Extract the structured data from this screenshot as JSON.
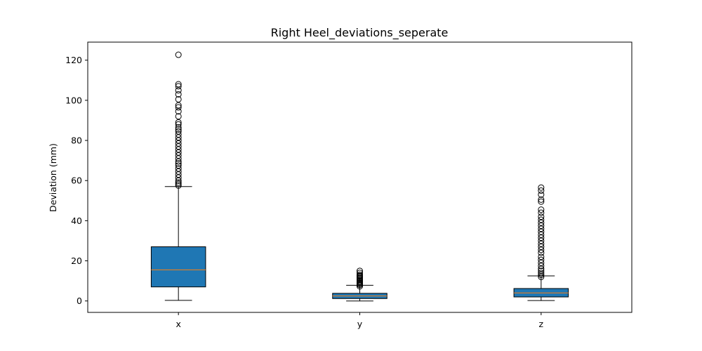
{
  "chart_data": {
    "type": "box",
    "title": "Right Heel_deviations_seperate",
    "xlabel": "",
    "ylabel": "Deviation (mm)",
    "ylim": [
      -5.7,
      129
    ],
    "yticks": [
      0,
      20,
      40,
      60,
      80,
      100,
      120
    ],
    "grid": false,
    "categories": [
      "x",
      "y",
      "z"
    ],
    "series": [
      {
        "category": "x",
        "whisker_low": 0.3,
        "q1": 7.0,
        "median": 15.5,
        "q3": 27.0,
        "whisker_high": 57.0,
        "outliers": [
          57.5,
          58.3,
          59.0,
          60.0,
          61.5,
          63.0,
          64.5,
          66.0,
          67.5,
          68.5,
          69.5,
          71.0,
          72.5,
          74.0,
          75.5,
          77.0,
          78.5,
          80.0,
          81.5,
          83.0,
          84.5,
          85.5,
          86.5,
          88.0,
          89.0,
          92.0,
          94.5,
          96.5,
          97.5,
          100.5,
          103.0,
          105.0,
          107.0,
          108.0,
          122.7
        ]
      },
      {
        "category": "y",
        "whisker_low": 0.0,
        "q1": 1.2,
        "median": 2.5,
        "q3": 3.8,
        "whisker_high": 7.8,
        "outliers": [
          7.3,
          8.0,
          8.5,
          9.0,
          9.5,
          10.0,
          10.5,
          11.0,
          11.5,
          12.0,
          12.5,
          13.0,
          14.0,
          15.0
        ]
      },
      {
        "category": "z",
        "whisker_low": 0.2,
        "q1": 2.0,
        "median": 4.0,
        "q3": 6.2,
        "whisker_high": 12.5,
        "outliers": [
          12.0,
          13.0,
          14.0,
          15.0,
          16.0,
          17.5,
          19.0,
          20.5,
          22.0,
          24.0,
          25.5,
          27.0,
          28.5,
          30.0,
          31.5,
          33.0,
          34.5,
          36.0,
          37.5,
          39.0,
          40.5,
          42.0,
          44.0,
          45.5,
          49.5,
          50.5,
          53.0,
          55.0,
          56.5
        ]
      }
    ],
    "colors": {
      "box_fill": "#1f77b4",
      "median": "#ff7f0e",
      "line": "#000000",
      "background": "#ffffff"
    }
  }
}
